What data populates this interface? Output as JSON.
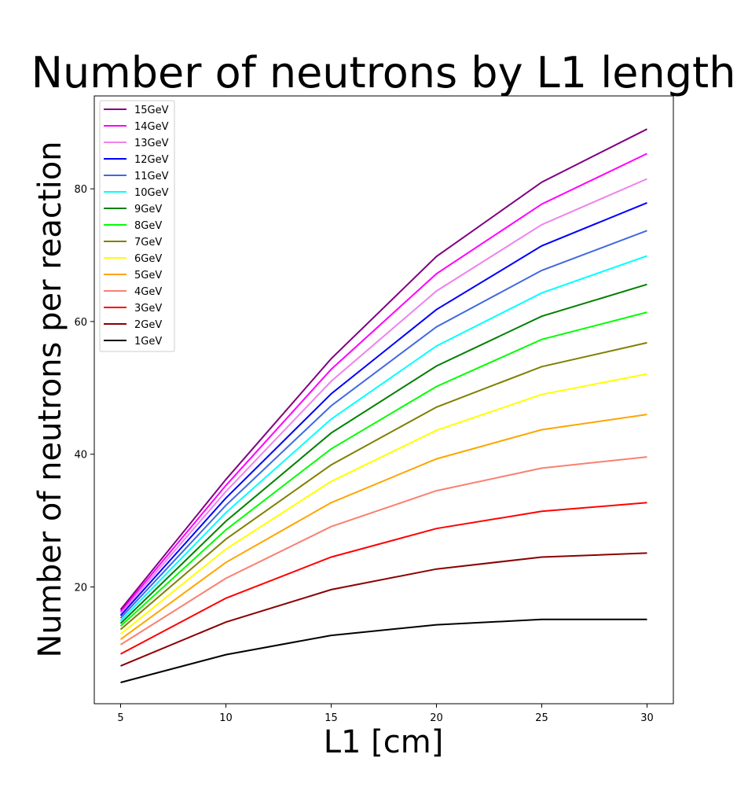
{
  "chart_data": {
    "type": "line",
    "title": "Number of neutrons by L1 length",
    "xlabel": "L1 [cm]",
    "ylabel": "Number of neutrons per reaction",
    "x": [
      5,
      10,
      15,
      20,
      25,
      30
    ],
    "xticks": [
      5,
      10,
      15,
      20,
      25,
      30
    ],
    "yticks": [
      20,
      40,
      60,
      80
    ],
    "xlim": [
      3.75,
      31.25
    ],
    "ylim": [
      2.4,
      94.0
    ],
    "grid": false,
    "legend_position": "top-left",
    "series": [
      {
        "name": "15GeV",
        "color": "#800080",
        "values": [
          16.6,
          36.2,
          54.4,
          69.8,
          81.0,
          89.0
        ]
      },
      {
        "name": "14GeV",
        "color": "#ff00ff",
        "values": [
          16.3,
          35.3,
          52.8,
          67.2,
          77.7,
          85.3
        ]
      },
      {
        "name": "13GeV",
        "color": "#ee82ee",
        "values": [
          16.0,
          34.4,
          51.0,
          64.6,
          74.6,
          81.5
        ]
      },
      {
        "name": "12GeV",
        "color": "#0000ff",
        "values": [
          15.7,
          33.4,
          49.1,
          61.8,
          71.4,
          77.9
        ]
      },
      {
        "name": "11GeV",
        "color": "#4169e1",
        "values": [
          15.3,
          32.3,
          47.3,
          59.2,
          67.7,
          73.7
        ]
      },
      {
        "name": "10GeV",
        "color": "#00ffff",
        "values": [
          14.9,
          31.2,
          45.3,
          56.3,
          64.3,
          69.9
        ]
      },
      {
        "name": "9GeV",
        "color": "#008000",
        "values": [
          14.5,
          29.9,
          43.2,
          53.3,
          60.8,
          65.6
        ]
      },
      {
        "name": "8GeV",
        "color": "#00ff00",
        "values": [
          14.1,
          28.6,
          40.8,
          50.2,
          57.3,
          61.4
        ]
      },
      {
        "name": "7GeV",
        "color": "#808000",
        "values": [
          13.6,
          27.2,
          38.4,
          47.1,
          53.2,
          56.8
        ]
      },
      {
        "name": "6GeV",
        "color": "#ffff00",
        "values": [
          12.9,
          25.7,
          35.9,
          43.6,
          49.0,
          52.1
        ]
      },
      {
        "name": "5GeV",
        "color": "#ffa500",
        "values": [
          12.1,
          23.7,
          32.7,
          39.3,
          43.7,
          46.0
        ]
      },
      {
        "name": "4GeV",
        "color": "#fa8072",
        "values": [
          11.3,
          21.3,
          29.1,
          34.5,
          37.9,
          39.6
        ]
      },
      {
        "name": "3GeV",
        "color": "#ff0000",
        "values": [
          9.9,
          18.3,
          24.5,
          28.8,
          31.4,
          32.7
        ]
      },
      {
        "name": "2GeV",
        "color": "#8b0000",
        "values": [
          8.1,
          14.7,
          19.6,
          22.7,
          24.5,
          25.1
        ]
      },
      {
        "name": "1GeV",
        "color": "#000000",
        "values": [
          5.6,
          9.8,
          12.7,
          14.3,
          15.1,
          15.1
        ]
      }
    ]
  }
}
